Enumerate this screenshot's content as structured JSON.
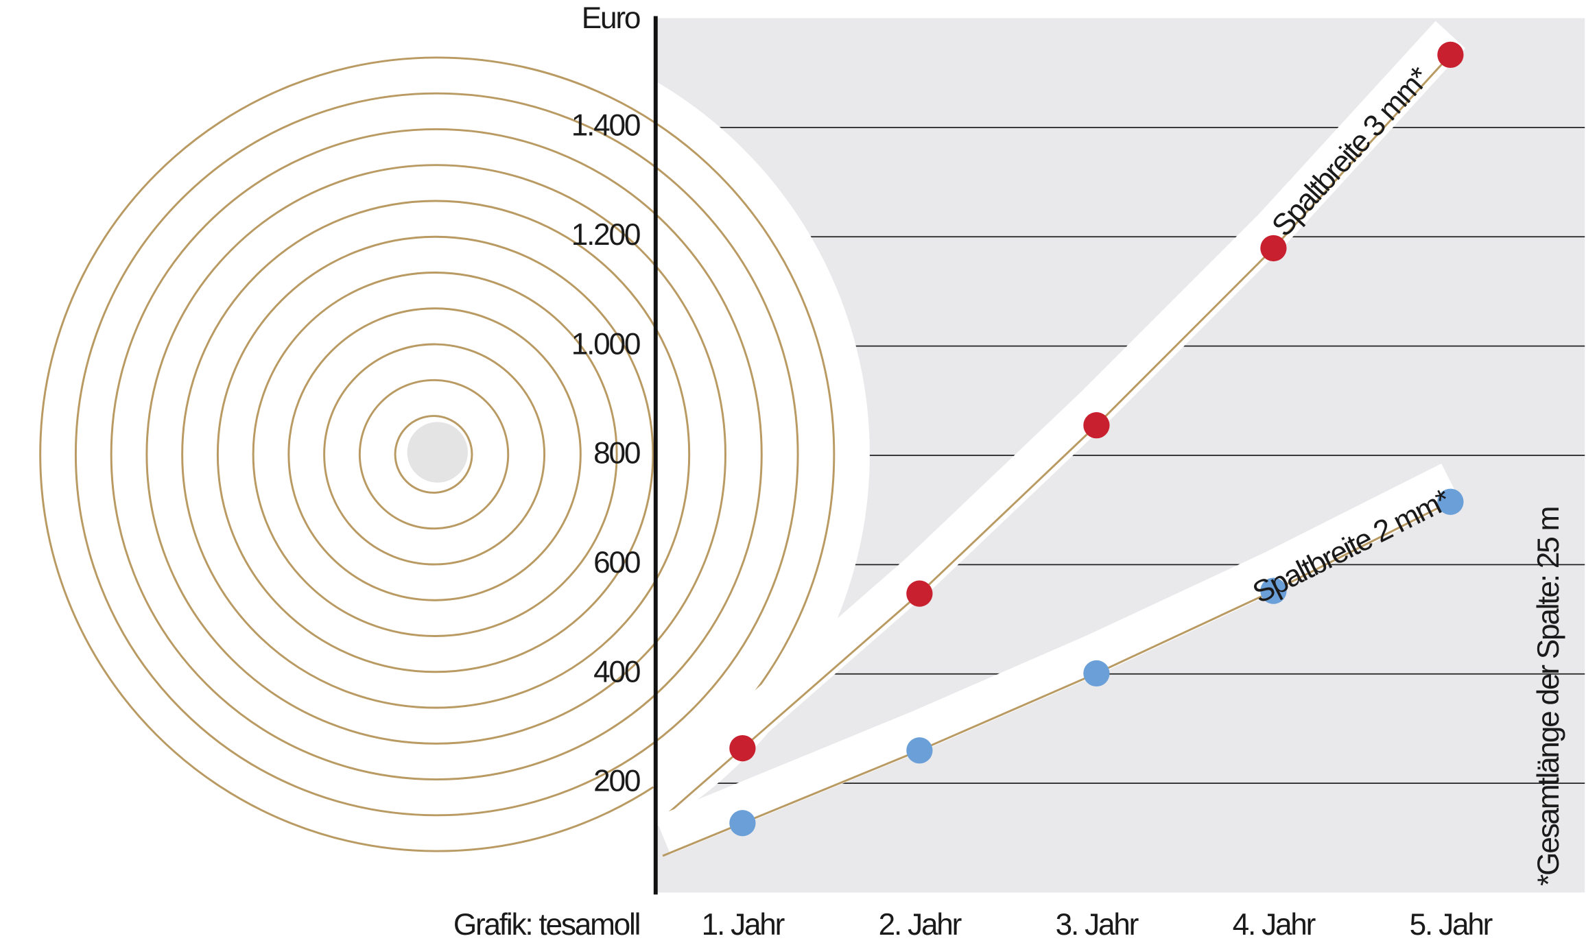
{
  "chart_data": {
    "type": "line",
    "y_label": "Euro",
    "source": "Grafik: tesamoll",
    "note": "*Gesamtlänge der Spalte: 25 m",
    "categories": [
      "1. Jahr",
      "2. Jahr",
      "3. Jahr",
      "4. Jahr",
      "5. Jahr"
    ],
    "series": [
      {
        "name": "Spaltbreite 3 mm*",
        "color": "#c8202f",
        "values": [
          264,
          547,
          855,
          1179,
          1533
        ]
      },
      {
        "name": "Spaltbreite 2 mm*",
        "color": "#6a9fd8",
        "values": [
          127,
          260,
          401,
          552,
          715
        ]
      }
    ],
    "ylim": [
      0,
      1600
    ],
    "yticks": [
      200,
      400,
      600,
      800,
      {
        "value": 1000,
        "label": "1.000"
      },
      {
        "value": 1200,
        "label": "1.200"
      },
      {
        "value": 1400,
        "label": "1.400"
      }
    ],
    "grid": true
  }
}
